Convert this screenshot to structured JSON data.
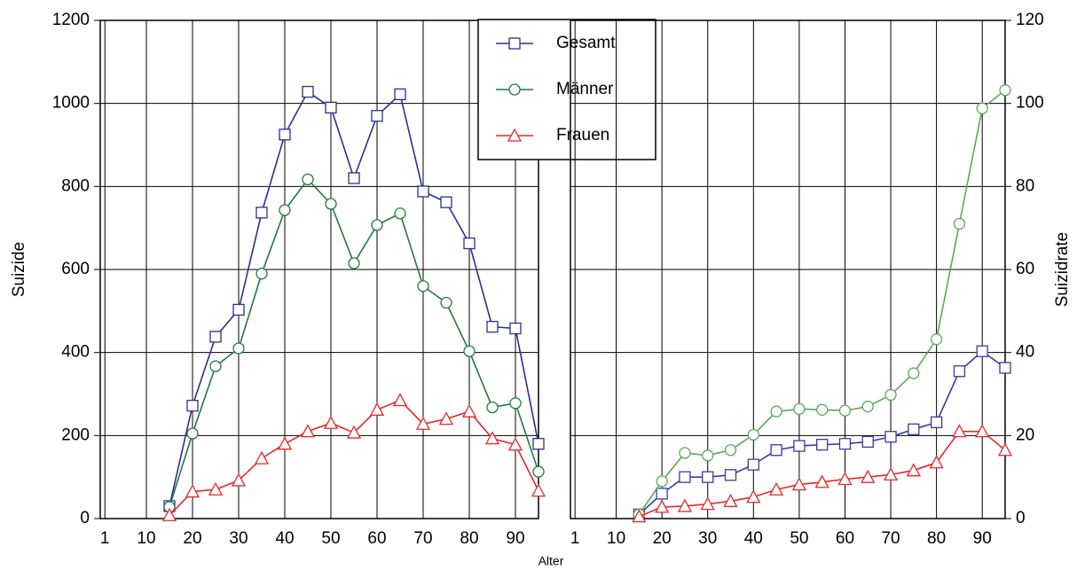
{
  "chart_data": [
    {
      "type": "line",
      "ylabel": "Suizide",
      "xlabel": "Alter",
      "y_axis_side": "left",
      "legend": "upper right",
      "x": [
        15,
        20,
        25,
        30,
        35,
        40,
        45,
        50,
        55,
        60,
        65,
        70,
        75,
        80,
        85,
        90,
        95
      ],
      "xlim": [
        0,
        95
      ],
      "xticks": [
        1,
        10,
        20,
        30,
        40,
        50,
        60,
        70,
        80,
        90
      ],
      "ylim": [
        0,
        1200
      ],
      "yticks": [
        0,
        200,
        400,
        600,
        800,
        1000,
        1200
      ],
      "grid": true,
      "series": [
        {
          "name": "Gesamt",
          "color": "#2e2e92",
          "marker": "square",
          "values": [
            30,
            272,
            438,
            503,
            737,
            925,
            1028,
            990,
            820,
            970,
            1022,
            788,
            762,
            663,
            462,
            458,
            180
          ]
        },
        {
          "name": "Männer",
          "color": "#1f7a40",
          "marker": "circle",
          "values": [
            28,
            205,
            367,
            410,
            590,
            743,
            817,
            758,
            615,
            707,
            735,
            560,
            520,
            403,
            268,
            278,
            113
          ]
        },
        {
          "name": "Frauen",
          "color": "#e8262a",
          "marker": "triangle",
          "values": [
            8,
            65,
            70,
            92,
            145,
            180,
            210,
            230,
            207,
            262,
            285,
            228,
            240,
            258,
            193,
            178,
            67
          ]
        }
      ]
    },
    {
      "type": "line",
      "ylabel": "Suizidrate",
      "y_axis_side": "right",
      "x": [
        15,
        20,
        25,
        30,
        35,
        40,
        45,
        50,
        55,
        60,
        65,
        70,
        75,
        80,
        85,
        90,
        95
      ],
      "xlim": [
        0,
        95
      ],
      "xticks": [
        1,
        10,
        20,
        30,
        40,
        50,
        60,
        70,
        80,
        90
      ],
      "ylim": [
        0,
        120
      ],
      "yticks": [
        0,
        20,
        40,
        60,
        80,
        100,
        120
      ],
      "grid": true,
      "series": [
        {
          "color": "#3a3aa6",
          "marker": "square",
          "values": [
            1,
            6,
            10,
            10,
            10.5,
            13,
            16.5,
            17.5,
            17.8,
            18,
            18.5,
            19.7,
            21.5,
            23.2,
            35.5,
            40.3,
            36.3
          ]
        },
        {
          "color": "#5aa85a",
          "marker": "circle",
          "values": [
            1,
            9,
            15.8,
            15.2,
            16.5,
            20.2,
            25.8,
            26.4,
            26.2,
            26,
            27,
            29.8,
            35,
            43.2,
            71,
            98.8,
            103.2
          ]
        },
        {
          "color": "#e8262a",
          "marker": "triangle",
          "values": [
            0.5,
            2.8,
            3,
            3.5,
            4.2,
            5.2,
            7,
            8.2,
            8.8,
            9.5,
            10,
            10.6,
            11.6,
            13.5,
            21,
            21,
            16.5
          ]
        }
      ]
    }
  ]
}
